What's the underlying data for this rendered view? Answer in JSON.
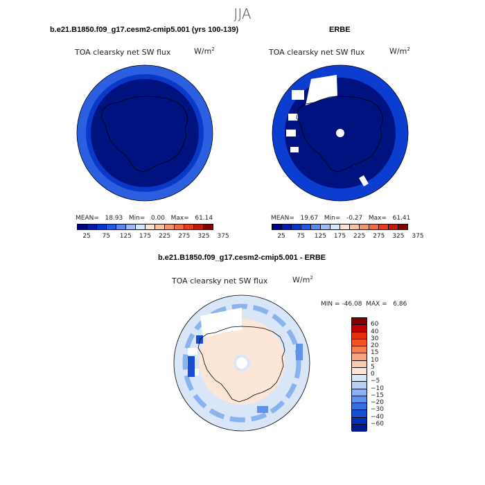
{
  "season": "JJA",
  "panels": {
    "model": {
      "title": "b.e21.B1850.f09_g17.cesm2-cmip5.001 (yrs 100-139)",
      "variable": "TOA clearsky net SW flux",
      "units_base": "W/m",
      "units_exp": "2",
      "stats": {
        "mean_label": "MEAN=",
        "mean": "18.93",
        "min_label": "Min=",
        "min": "0.00",
        "max_label": "Max=",
        "max": "61.14"
      }
    },
    "obs": {
      "title": "ERBE",
      "variable": "TOA clearsky net SW flux",
      "units_base": "W/m",
      "units_exp": "2",
      "stats": {
        "mean_label": "MEAN=",
        "mean": "19.67",
        "min_label": "Min=",
        "min": "-0.27",
        "max_label": "Max=",
        "max": "61.41"
      }
    },
    "diff": {
      "title": "b.e21.B1850.f09_g17.cesm2-cmip5.001 - ERBE",
      "variable": "TOA clearsky net SW flux",
      "units_base": "W/m",
      "units_exp": "2",
      "stats": {
        "min_label": "MIN =",
        "min": "-46.08",
        "max_label": "MAX =",
        "max": "6.86"
      }
    }
  },
  "abs_colorbar": {
    "colors": [
      "#00007f",
      "#0018a8",
      "#0036cc",
      "#1f5be0",
      "#5a8ae8",
      "#9bbbf0",
      "#d7e6fa",
      "#fbe3d2",
      "#f8c2a4",
      "#f39670",
      "#ee6a43",
      "#e63b1c",
      "#c41a0c",
      "#7f0000"
    ],
    "labels": [
      "25",
      "75",
      "125",
      "175",
      "225",
      "275",
      "325",
      "375"
    ]
  },
  "diff_colorbar": {
    "colors": [
      "#800000",
      "#c00000",
      "#e63010",
      "#f4541e",
      "#f57f50",
      "#f7a585",
      "#f9c9b0",
      "#fbe6d8",
      "#d9e6f8",
      "#b6cff3",
      "#8ab2ee",
      "#5f92e8",
      "#3670de",
      "#154ed0",
      "#0030b8",
      "#00178f"
    ],
    "labels": [
      "60",
      "40",
      "30",
      "20",
      "15",
      "10",
      "5",
      "0",
      "−5",
      "−10",
      "−15",
      "−20",
      "−30",
      "−40",
      "−60"
    ]
  },
  "map_colors": {
    "land_outline": "#000000",
    "model_ocean": "#0a39c9",
    "model_outer": "#2b5fe0",
    "model_inner": "#00127f",
    "obs_inner": "#00127f",
    "obs_outer": "#0b3dd1",
    "missing": "#ffffff",
    "diff_bg": "#d9e6f8",
    "diff_land": "#fbe6d8",
    "diff_blue": "#5f92e8",
    "diff_darkblue": "#154ed0"
  }
}
